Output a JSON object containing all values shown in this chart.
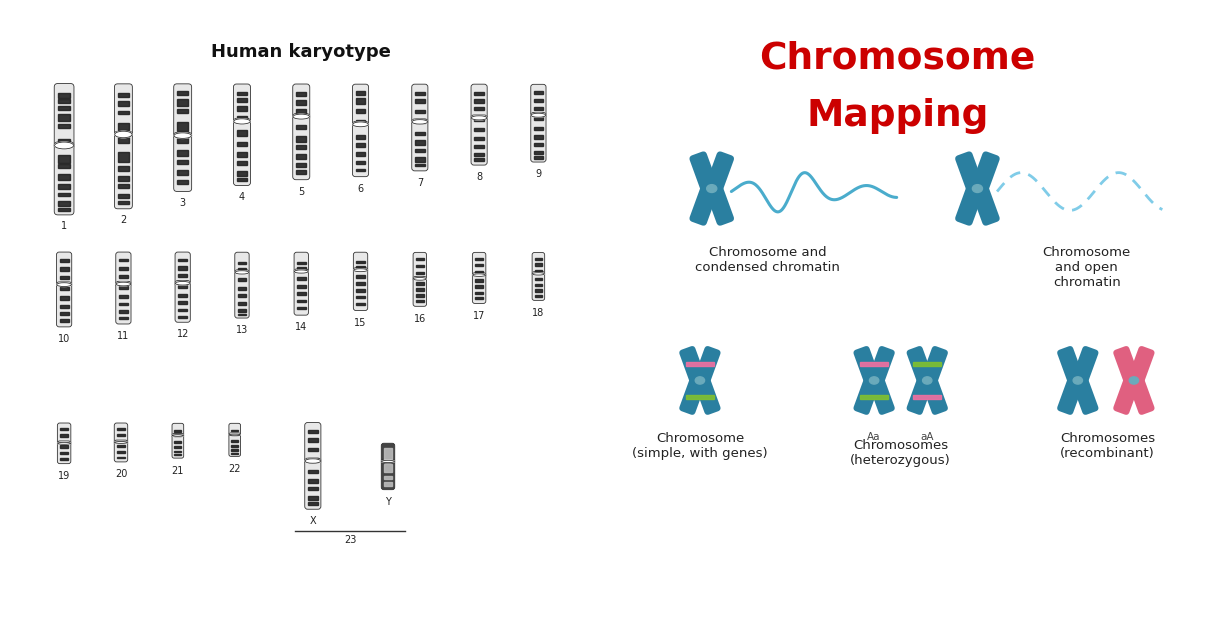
{
  "title_left": "Human karyotype",
  "title_right_line1": "Chromosome",
  "title_right_line2": "Mapping",
  "title_right_color": "#cc0000",
  "bg_color": "#ffffff",
  "chr_body_color": "#e8e8e8",
  "chr_edge_color": "#333333",
  "chr_dark_band": "#222222",
  "blue_chr_color": "#2a7fa0",
  "pink_chr_color": "#e06080",
  "chromatin_condensed_color": "#4aaccc",
  "chromatin_open_color": "#80cce8",
  "gene_pink": "#f070a0",
  "gene_green": "#80c030",
  "caption_condensed": "Chromosome and\ncondensed chromatin",
  "caption_open": "Chromosome\nand open\nchromatin",
  "caption_simple": "Chromosome\n(simple, with genes)",
  "caption_heterozygous": "Chromosomes\n(heterozygous)",
  "caption_recombinant": "Chromosomes\n(recombinant)",
  "label_Aa": "Aa",
  "label_aA": "aA",
  "row1_labels": [
    "1",
    "2",
    "3",
    "4",
    "5",
    "6",
    "7",
    "8",
    "9"
  ],
  "row2_labels": [
    "10",
    "11",
    "12",
    "13",
    "14",
    "15",
    "16",
    "17",
    "18"
  ],
  "row3_labels": [
    "19",
    "20",
    "21",
    "22"
  ],
  "sex_labels": [
    "X",
    "Y"
  ],
  "label_23": "23"
}
